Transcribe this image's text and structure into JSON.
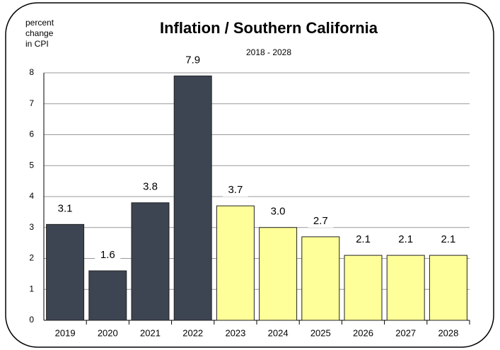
{
  "chart_data": {
    "type": "bar",
    "title": "Inflation / Southern California",
    "subtitle": "2018 - 2028",
    "ylabel": [
      "percent",
      "change",
      "in CPI"
    ],
    "categories": [
      "2019",
      "2020",
      "2021",
      "2022",
      "2023",
      "2024",
      "2025",
      "2026",
      "2027",
      "2028"
    ],
    "values": [
      3.1,
      1.6,
      3.8,
      7.9,
      3.7,
      3.0,
      2.7,
      2.1,
      2.1,
      2.1
    ],
    "value_labels": [
      "3.1",
      "1.6",
      "3.8",
      "7.9",
      "3.7",
      "3.0",
      "2.7",
      "2.1",
      "2.1",
      "2.1"
    ],
    "colors": [
      "#3d4452",
      "#3d4452",
      "#3d4452",
      "#3d4452",
      "#ffff99",
      "#ffff99",
      "#ffff99",
      "#ffff99",
      "#ffff99",
      "#ffff99"
    ],
    "ylim": [
      0,
      8
    ],
    "yticks": [
      0,
      1,
      2,
      3,
      4,
      5,
      6,
      7,
      8
    ],
    "grid": true
  }
}
